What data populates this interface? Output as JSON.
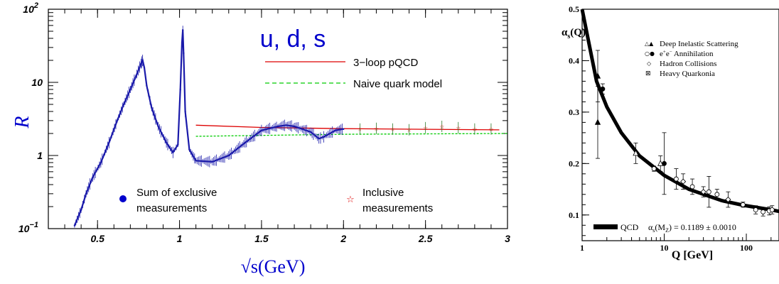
{
  "chart_data": [
    {
      "type": "scatter",
      "title": "u, d, s",
      "xlabel": "√s(GeV)",
      "ylabel": "R",
      "xlim": [
        0.2,
        3.0
      ],
      "ylim": [
        0.1,
        100
      ],
      "yscale": "log",
      "x_ticks": [
        {
          "v": 0.5,
          "label": "0.5"
        },
        {
          "v": 1.0,
          "label": "1"
        },
        {
          "v": 1.5,
          "label": "1.5"
        },
        {
          "v": 2.0,
          "label": "2"
        },
        {
          "v": 2.5,
          "label": "2.5"
        },
        {
          "v": 3.0,
          "label": "3"
        }
      ],
      "y_ticks": [
        {
          "v": 0.1,
          "label": "10",
          "sup": "−1"
        },
        {
          "v": 1,
          "label": "1",
          "sup": ""
        },
        {
          "v": 10,
          "label": "10",
          "sup": ""
        },
        {
          "v": 100,
          "label": "10",
          "sup": "2"
        }
      ],
      "legend_lines": [
        {
          "name": "3−loop pQCD",
          "color": "#dd0000",
          "dash": "solid"
        },
        {
          "name": "Naive quark model",
          "color": "#00cc00",
          "dash": "dashed"
        }
      ],
      "legend_markers": [
        {
          "name_lines": [
            "Sum of exclusive",
            "measurements"
          ],
          "symbol": "dot",
          "color": "#0000cc"
        },
        {
          "name_lines": [
            "Inclusive",
            "measurements"
          ],
          "symbol": "star",
          "color": "#dd0000"
        }
      ],
      "series": [
        {
          "name": "Sum of exclusive measurements",
          "color": "#1a1aaa",
          "points": [
            [
              0.36,
              0.11
            ],
            [
              0.4,
              0.18
            ],
            [
              0.43,
              0.3
            ],
            [
              0.47,
              0.5
            ],
            [
              0.52,
              0.8
            ],
            [
              0.57,
              1.5
            ],
            [
              0.62,
              3
            ],
            [
              0.66,
              5
            ],
            [
              0.7,
              8
            ],
            [
              0.74,
              13
            ],
            [
              0.765,
              18
            ],
            [
              0.775,
              20
            ],
            [
              0.785,
              16
            ],
            [
              0.8,
              9
            ],
            [
              0.83,
              4.5
            ],
            [
              0.87,
              2.5
            ],
            [
              0.92,
              1.5
            ],
            [
              0.96,
              1.1
            ],
            [
              0.99,
              1.4
            ],
            [
              1.005,
              8
            ],
            [
              1.015,
              35
            ],
            [
              1.02,
              52
            ],
            [
              1.025,
              25
            ],
            [
              1.035,
              4
            ],
            [
              1.06,
              1.2
            ],
            [
              1.1,
              0.85
            ],
            [
              1.2,
              0.82
            ],
            [
              1.3,
              1.0
            ],
            [
              1.4,
              1.5
            ],
            [
              1.5,
              2.2
            ],
            [
              1.6,
              2.5
            ],
            [
              1.65,
              2.6
            ],
            [
              1.7,
              2.5
            ],
            [
              1.8,
              2.1
            ],
            [
              1.85,
              1.7
            ],
            [
              1.88,
              1.8
            ],
            [
              1.95,
              2.2
            ],
            [
              2.0,
              2.3
            ]
          ]
        },
        {
          "name": "Inclusive measurements",
          "color": "#dd0000",
          "points": [
            [
              2.1,
              2.3
            ],
            [
              2.2,
              2.35
            ],
            [
              2.3,
              2.3
            ],
            [
              2.4,
              2.25
            ],
            [
              2.5,
              2.4
            ],
            [
              2.6,
              2.5
            ],
            [
              2.7,
              2.4
            ],
            [
              2.8,
              2.3
            ],
            [
              2.9,
              2.3
            ]
          ]
        }
      ],
      "curves": [
        {
          "name": "3−loop pQCD",
          "color": "#dd0000",
          "points": [
            [
              1.1,
              2.6
            ],
            [
              1.5,
              2.42
            ],
            [
              2.0,
              2.33
            ],
            [
              2.5,
              2.28
            ],
            [
              2.95,
              2.24
            ]
          ]
        },
        {
          "name": "Naive quark model",
          "color": "#00cc00",
          "points": [
            [
              1.1,
              1.83
            ],
            [
              2.0,
              1.95
            ],
            [
              3.0,
              2.0
            ]
          ]
        }
      ]
    },
    {
      "type": "scatter",
      "title": "",
      "xlabel": "Q [GeV]",
      "ylabel": "αs(Q)",
      "xscale": "log",
      "xlim": [
        1,
        250
      ],
      "ylim": [
        0.05,
        0.5
      ],
      "x_ticks": [
        {
          "v": 1,
          "label": "1"
        },
        {
          "v": 10,
          "label": "10"
        },
        {
          "v": 100,
          "label": "100"
        }
      ],
      "y_ticks": [
        {
          "v": 0.1,
          "label": "0.1"
        },
        {
          "v": 0.2,
          "label": "0.2"
        },
        {
          "v": 0.3,
          "label": "0.3"
        },
        {
          "v": 0.4,
          "label": "0.4"
        },
        {
          "v": 0.5,
          "label": "0.5"
        }
      ],
      "legend": [
        {
          "symbols": "△▲",
          "name": "Deep Inelastic Scattering"
        },
        {
          "symbols": "○●",
          "name": "e+e− Annihilation"
        },
        {
          "symbols": "◇",
          "name": "Hadron Collisions"
        },
        {
          "symbols": "⊠",
          "name": "Heavy Quarkonia"
        }
      ],
      "qcd_label": "QCD",
      "qcd_value": "αs(MZ) = 0.1189 ± 0.0010",
      "points": [
        {
          "x": 1.55,
          "y": 0.37,
          "err": 0.05,
          "symbol": "triangle-filled"
        },
        {
          "x": 1.55,
          "y": 0.28,
          "err": 0.07,
          "symbol": "triangle-filled"
        },
        {
          "x": 1.78,
          "y": 0.345,
          "err": 0.01,
          "symbol": "circle-filled"
        },
        {
          "x": 4.5,
          "y": 0.22,
          "err": 0.02,
          "symbol": "triangle-open"
        },
        {
          "x": 7.5,
          "y": 0.19,
          "err": 0.005,
          "symbol": "circle-open"
        },
        {
          "x": 9,
          "y": 0.2,
          "err": 0.015,
          "symbol": "triangle-open"
        },
        {
          "x": 10,
          "y": 0.2,
          "err": 0.06,
          "symbol": "circle-filled"
        },
        {
          "x": 14,
          "y": 0.17,
          "err": 0.02,
          "symbol": "circle-open"
        },
        {
          "x": 17,
          "y": 0.165,
          "err": 0.015,
          "symbol": "diamond-open"
        },
        {
          "x": 22,
          "y": 0.155,
          "err": 0.015,
          "symbol": "circle-open"
        },
        {
          "x": 30,
          "y": 0.145,
          "err": 0.01,
          "symbol": "diamond-open"
        },
        {
          "x": 35,
          "y": 0.145,
          "err": 0.03,
          "symbol": "circle-open"
        },
        {
          "x": 44,
          "y": 0.14,
          "err": 0.01,
          "symbol": "circle-open"
        },
        {
          "x": 60,
          "y": 0.13,
          "err": 0.015,
          "symbol": "diamond-open"
        },
        {
          "x": 91,
          "y": 0.12,
          "err": 0.005,
          "symbol": "circle-open"
        },
        {
          "x": 130,
          "y": 0.11,
          "err": 0.008,
          "symbol": "circle-open"
        },
        {
          "x": 160,
          "y": 0.106,
          "err": 0.008,
          "symbol": "circle-open"
        },
        {
          "x": 190,
          "y": 0.108,
          "err": 0.008,
          "symbol": "circle-open"
        },
        {
          "x": 206,
          "y": 0.11,
          "err": 0.008,
          "symbol": "circle-open"
        }
      ],
      "curve": [
        [
          1,
          0.5
        ],
        [
          1.5,
          0.36
        ],
        [
          2,
          0.31
        ],
        [
          3,
          0.26
        ],
        [
          5,
          0.215
        ],
        [
          10,
          0.177
        ],
        [
          20,
          0.15
        ],
        [
          50,
          0.128
        ],
        [
          91.2,
          0.119
        ],
        [
          200,
          0.11
        ],
        [
          250,
          0.107
        ]
      ]
    }
  ]
}
